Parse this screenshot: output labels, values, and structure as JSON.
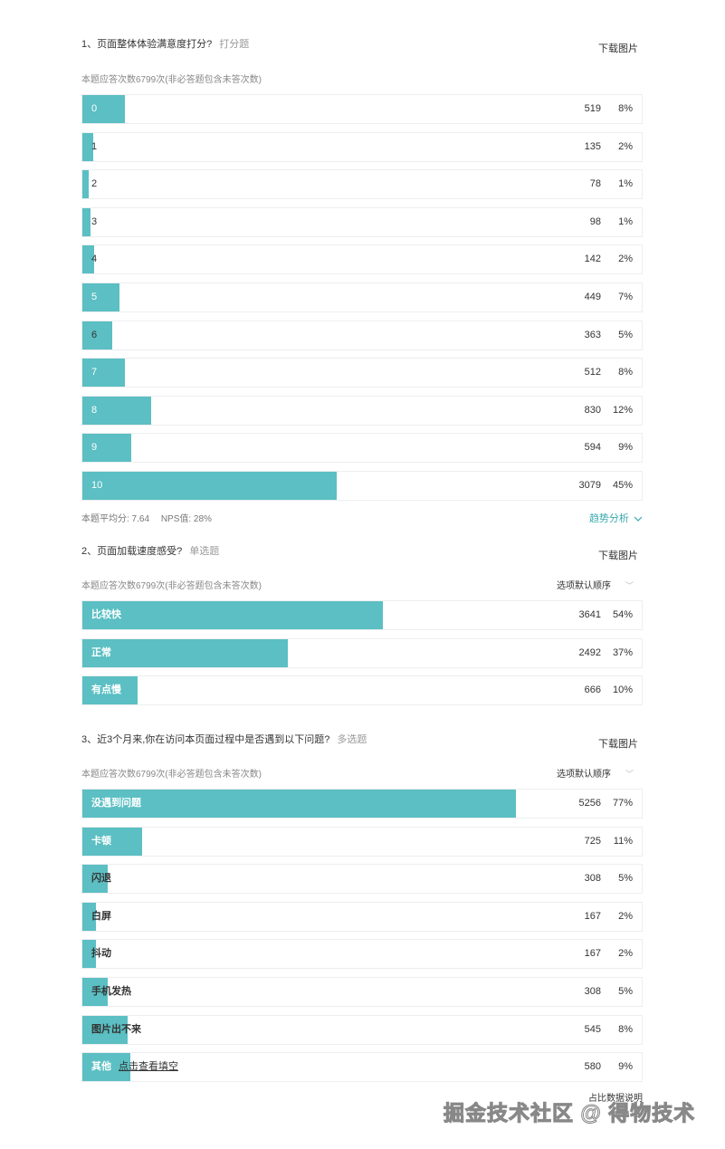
{
  "questions": [
    {
      "title": "1、页面整体体验满意度打分?",
      "type": "打分题",
      "download_label": "下载图片",
      "subtitle": "本题应答次数6799次(非必答题包含未答次数)",
      "average_text": "本题平均分: 7.64",
      "nps_text": "NPS值: 28%",
      "trend_label": "趋势分析"
    },
    {
      "title": "2、页面加载速度感受?",
      "type": "单选题",
      "download_label": "下载图片",
      "subtitle": "本题应答次数6799次(非必答题包含未答次数)",
      "sort_label": "选项默认顺序"
    },
    {
      "title": "3、近3个月来,你在访问本页面过程中是否遇到以下问题?",
      "type": "多选题",
      "download_label": "下载图片",
      "subtitle": "本题应答次数6799次(非必答题包含未答次数)",
      "sort_label": "选项默认顺序",
      "fill_link_label": "点击查看填空",
      "ratio_note": "占比数据说明"
    }
  ],
  "chart_data": [
    {
      "type": "bar",
      "orientation": "horizontal",
      "categories": [
        "0",
        "1",
        "2",
        "3",
        "4",
        "5",
        "6",
        "7",
        "8",
        "9",
        "10"
      ],
      "values": [
        519,
        135,
        78,
        98,
        142,
        449,
        363,
        512,
        830,
        594,
        3079
      ],
      "percents": [
        "8%",
        "2%",
        "1%",
        "1%",
        "2%",
        "7%",
        "5%",
        "8%",
        "12%",
        "9%",
        "45%"
      ],
      "fractions": [
        0.08,
        0.02,
        0.01,
        0.01,
        0.02,
        0.07,
        0.05,
        0.08,
        0.12,
        0.09,
        0.45
      ],
      "color": "#5bbfc3"
    },
    {
      "type": "bar",
      "orientation": "horizontal",
      "categories": [
        "比较快",
        "正常",
        "有点慢"
      ],
      "values": [
        3641,
        2492,
        666
      ],
      "percents": [
        "54%",
        "37%",
        "10%"
      ],
      "fractions": [
        0.54,
        0.37,
        0.1
      ],
      "color": "#5bbfc3"
    },
    {
      "type": "bar",
      "orientation": "horizontal",
      "categories": [
        "没遇到问题",
        "卡顿",
        "闪退",
        "白屏",
        "抖动",
        "手机发热",
        "图片出不来",
        "其他"
      ],
      "values": [
        5256,
        725,
        308,
        167,
        167,
        308,
        545,
        580
      ],
      "percents": [
        "77%",
        "11%",
        "5%",
        "2%",
        "2%",
        "5%",
        "8%",
        "9%"
      ],
      "fractions": [
        0.77,
        0.11,
        0.05,
        0.02,
        0.02,
        0.05,
        0.08,
        0.09
      ],
      "color": "#5bbfc3"
    }
  ],
  "watermark": "掘金技术社区 @ 得物技术"
}
